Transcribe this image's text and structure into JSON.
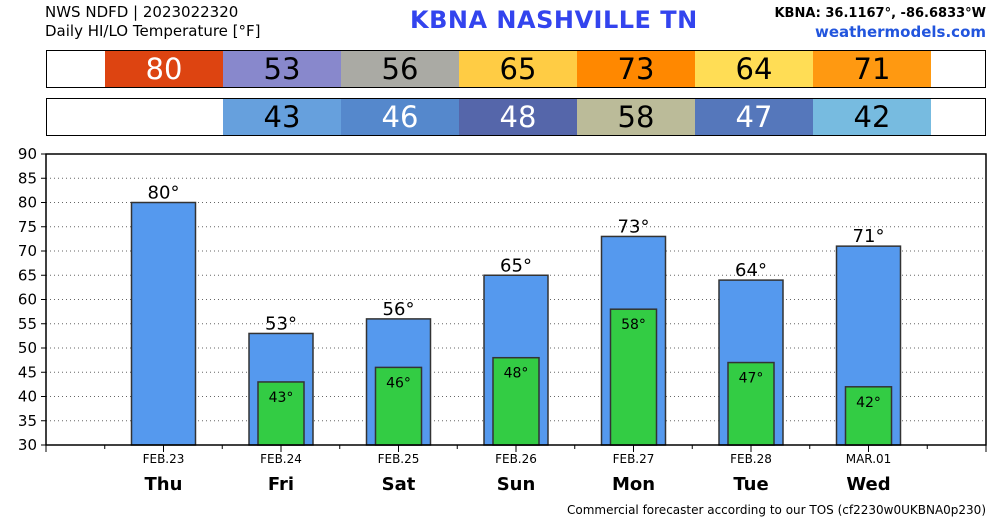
{
  "header": {
    "line1": "NWS NDFD | 2023022320",
    "line2": "Daily HI/LO Temperature [°F]",
    "location": "KBNA   NASHVILLE      TN",
    "coords": "KBNA: 36.1167°, -86.6833°W",
    "site": "weathermodels.com"
  },
  "footer": "Commercial forecaster according to our TOS (cf2230w0UKBNA0p230)",
  "strips": {
    "hi": [
      {
        "v": "80",
        "bg": "#dd4411",
        "fg": "#ffffff"
      },
      {
        "v": "53",
        "bg": "#8888cc",
        "fg": "#000000"
      },
      {
        "v": "56",
        "bg": "#aaaaa4",
        "fg": "#000000"
      },
      {
        "v": "65",
        "bg": "#ffcc44",
        "fg": "#000000"
      },
      {
        "v": "73",
        "bg": "#ff8800",
        "fg": "#000000"
      },
      {
        "v": "64",
        "bg": "#ffdd55",
        "fg": "#000000"
      },
      {
        "v": "71",
        "bg": "#ff9911",
        "fg": "#000000"
      }
    ],
    "lo": [
      {
        "v": "43",
        "bg": "#66a0dd",
        "fg": "#000000"
      },
      {
        "v": "46",
        "bg": "#5588cc",
        "fg": "#ffffff"
      },
      {
        "v": "48",
        "bg": "#5566aa",
        "fg": "#ffffff"
      },
      {
        "v": "58",
        "bg": "#bbbb99",
        "fg": "#000000"
      },
      {
        "v": "47",
        "bg": "#5577bb",
        "fg": "#ffffff"
      },
      {
        "v": "42",
        "bg": "#77bbe0",
        "fg": "#000000"
      }
    ]
  },
  "chart_data": {
    "type": "bar",
    "categories": [
      "FEB.23",
      "FEB.24",
      "FEB.25",
      "FEB.26",
      "FEB.27",
      "FEB.28",
      "MAR.01"
    ],
    "days": [
      "Thu",
      "Fri",
      "Sat",
      "Sun",
      "Mon",
      "Tue",
      "Wed"
    ],
    "series": [
      {
        "values": [
          80,
          53,
          56,
          65,
          73,
          64,
          71
        ],
        "labels": [
          "80°",
          "53°",
          "56°",
          "65°",
          "73°",
          "64°",
          "71°"
        ],
        "color": "#5599ee"
      },
      {
        "values": [
          null,
          43,
          46,
          48,
          58,
          47,
          42
        ],
        "labels": [
          "",
          "43°",
          "46°",
          "48°",
          "58°",
          "47°",
          "42°"
        ],
        "color": "#33cc44"
      }
    ],
    "yticks": [
      "30",
      "35",
      "40",
      "45",
      "50",
      "55",
      "60",
      "65",
      "70",
      "75",
      "80",
      "85",
      "90"
    ],
    "ylim": [
      30,
      90
    ],
    "grid": "dotted"
  }
}
